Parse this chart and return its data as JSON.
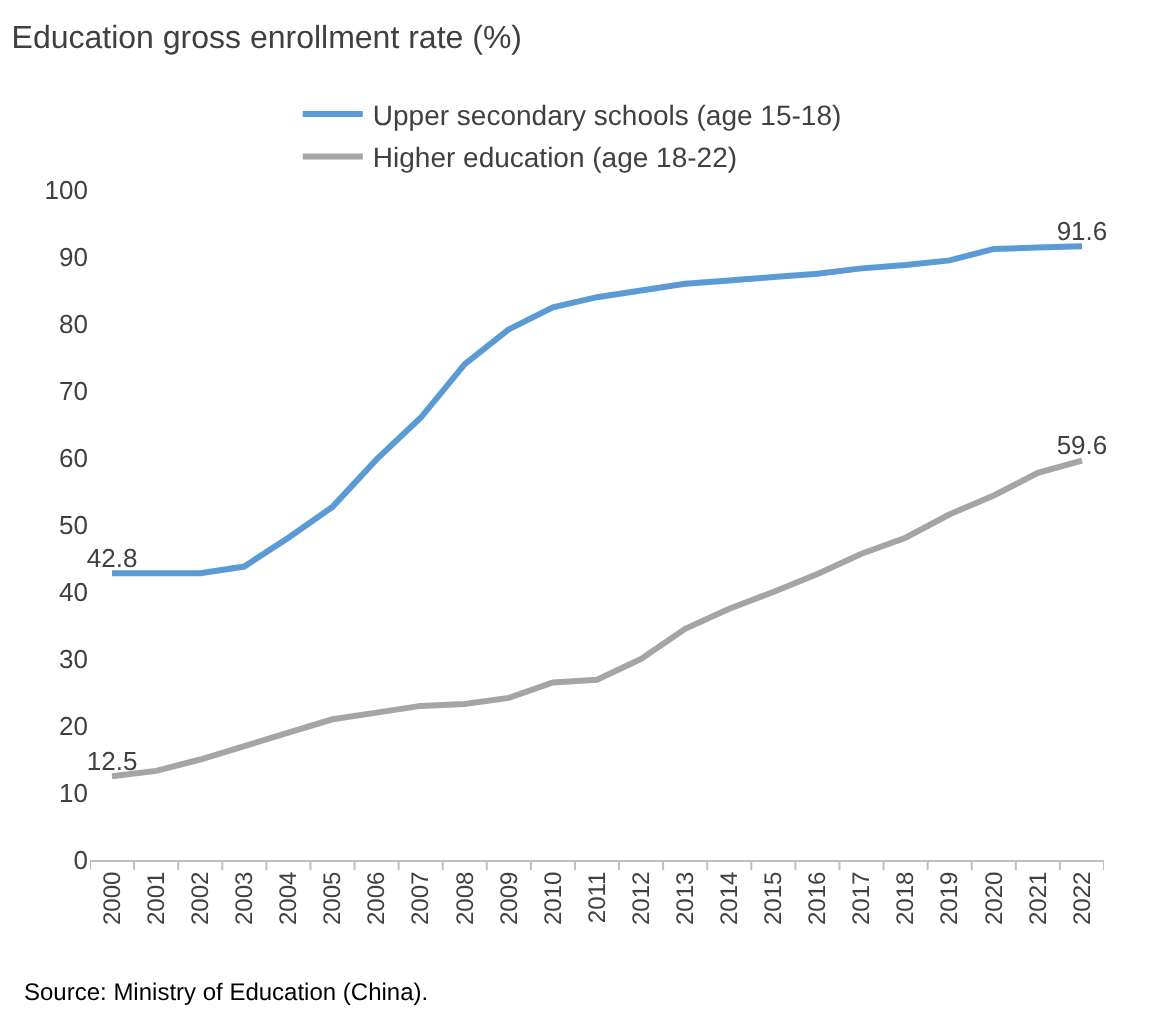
{
  "chart_data": {
    "type": "line",
    "title": "Education gross enrollment rate (%)",
    "categories": [
      "2000",
      "2001",
      "2002",
      "2003",
      "2004",
      "2005",
      "2006",
      "2007",
      "2008",
      "2009",
      "2010",
      "2011",
      "2012",
      "2013",
      "2014",
      "2015",
      "2016",
      "2017",
      "2018",
      "2019",
      "2020",
      "2021",
      "2022"
    ],
    "series": [
      {
        "name": "Upper secondary schools (age 15-18)",
        "color": "#5b9bd5",
        "values": [
          42.8,
          42.8,
          42.8,
          43.8,
          48.1,
          52.7,
          59.8,
          66.0,
          74.0,
          79.2,
          82.5,
          84.0,
          85.0,
          86.0,
          86.5,
          87.0,
          87.5,
          88.3,
          88.8,
          89.5,
          91.2,
          91.4,
          91.6
        ],
        "value_labels": [
          "42.8",
          null,
          null,
          null,
          null,
          null,
          null,
          null,
          null,
          null,
          null,
          null,
          null,
          null,
          null,
          null,
          null,
          null,
          null,
          null,
          null,
          null,
          "91.6"
        ]
      },
      {
        "name": "Higher education (age 18-22)",
        "color": "#a5a5a5",
        "values": [
          12.5,
          13.3,
          15.0,
          17.0,
          19.0,
          21.0,
          22.0,
          23.0,
          23.3,
          24.2,
          26.5,
          26.9,
          30.0,
          34.5,
          37.5,
          40.0,
          42.7,
          45.7,
          48.1,
          51.6,
          54.4,
          57.8,
          59.6
        ],
        "value_labels": [
          "12.5",
          null,
          null,
          null,
          null,
          null,
          null,
          null,
          null,
          null,
          null,
          null,
          null,
          null,
          null,
          null,
          null,
          null,
          null,
          null,
          null,
          null,
          "59.6"
        ]
      }
    ],
    "ylim": [
      0,
      100
    ],
    "yticks": [
      0,
      10,
      20,
      30,
      40,
      50,
      60,
      70,
      80,
      90,
      100
    ],
    "legend": "top",
    "annotations": [
      "Source: Ministry of Education (China)."
    ]
  }
}
